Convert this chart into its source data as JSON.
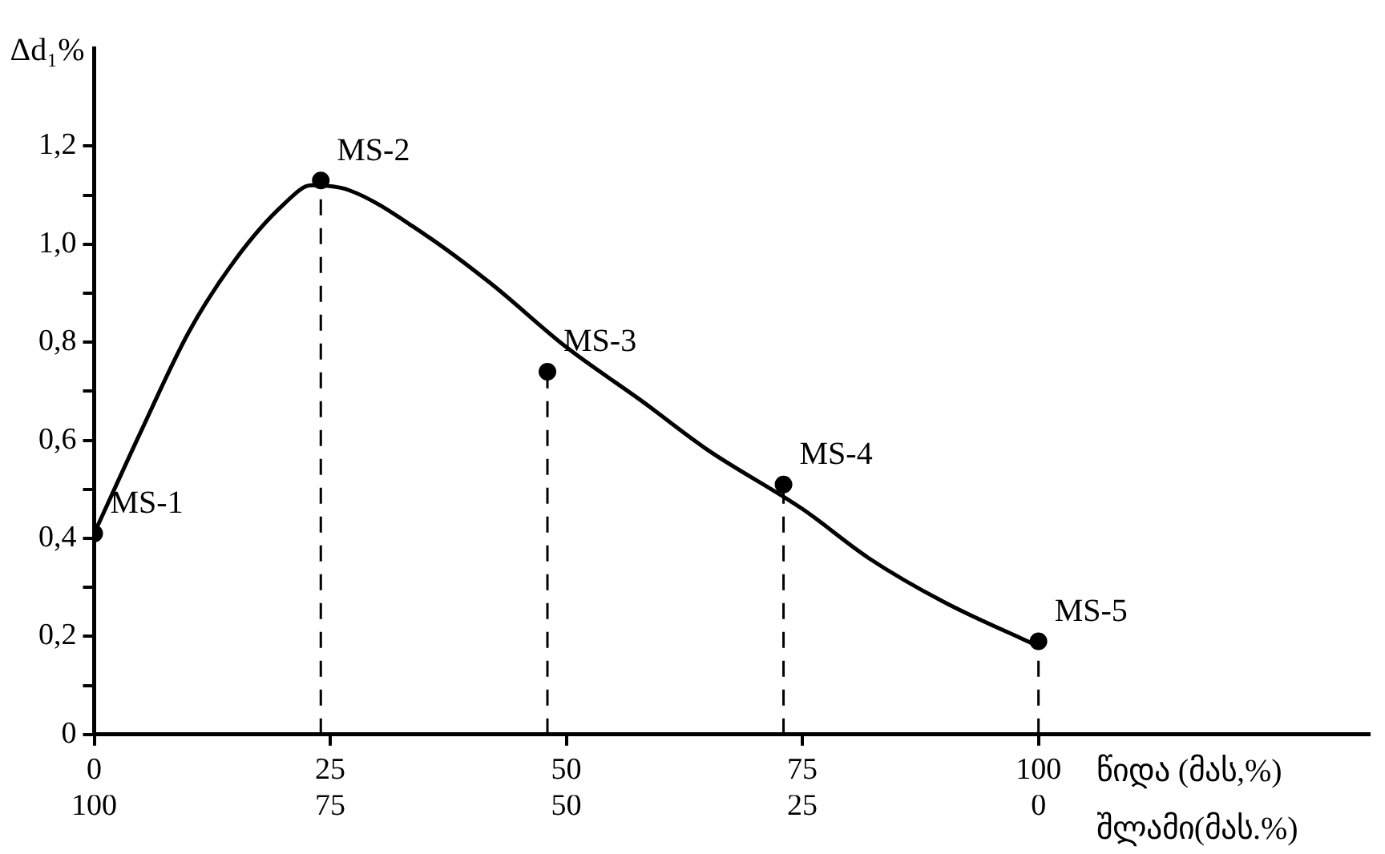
{
  "chart_data": {
    "type": "line",
    "xlabel": "წიდა (მას,%)",
    "x2label": "შლამი(მას.%)",
    "ylabel": "Δd₁%",
    "xlim": [
      0,
      135
    ],
    "xticks": [
      0,
      25,
      50,
      75,
      100
    ],
    "x2lim": [
      100,
      -35
    ],
    "x2ticks": [
      100,
      75,
      50,
      25,
      0
    ],
    "ylim": [
      0,
      1.4
    ],
    "yticks": [
      {
        "value": 0,
        "label": "0"
      },
      {
        "value": 0.1,
        "label": null
      },
      {
        "value": 0.2,
        "label": "0,2"
      },
      {
        "value": 0.3,
        "label": null
      },
      {
        "value": 0.4,
        "label": "0,4"
      },
      {
        "value": 0.5,
        "label": null
      },
      {
        "value": 0.6,
        "label": "0,6"
      },
      {
        "value": 0.7,
        "label": null
      },
      {
        "value": 0.8,
        "label": "0,8"
      },
      {
        "value": 0.9,
        "label": null
      },
      {
        "value": 1.0,
        "label": "1,0"
      },
      {
        "value": 1.1,
        "label": null
      },
      {
        "value": 1.2,
        "label": "1,2"
      }
    ],
    "grid": false,
    "legend": false,
    "marker": "circle",
    "series": [
      {
        "type": "line",
        "color": "#000000",
        "marker": "none",
        "x": [
          0,
          5,
          10,
          15,
          20,
          23,
          27,
          35,
          42,
          50,
          58,
          65,
          75,
          82,
          90,
          100
        ],
        "values": [
          0.41,
          0.62,
          0.82,
          0.97,
          1.08,
          1.12,
          1.11,
          1.02,
          0.92,
          0.79,
          0.68,
          0.58,
          0.46,
          0.36,
          0.27,
          0.18
        ]
      },
      {
        "type": "scatter",
        "color": "#000000",
        "x": [
          0,
          24,
          48,
          73,
          100
        ],
        "values": [
          0.41,
          1.13,
          0.74,
          0.51,
          0.19
        ]
      }
    ],
    "ref_lines": [
      {
        "axis": "x",
        "value": 24,
        "line_style": "dashed"
      },
      {
        "axis": "x",
        "value": 48,
        "line_style": "dashed"
      },
      {
        "axis": "x",
        "value": 73,
        "line_style": "dashed"
      },
      {
        "axis": "x",
        "value": 100,
        "line_style": "dashed"
      }
    ],
    "annotations": [
      {
        "text": "MS-1",
        "x": 0,
        "y": 0.41
      },
      {
        "text": "MS-2",
        "x": 24,
        "y": 1.13
      },
      {
        "text": "MS-3",
        "x": 48,
        "y": 0.74
      },
      {
        "text": "MS-4",
        "x": 73,
        "y": 0.51
      },
      {
        "text": "MS-5",
        "x": 100,
        "y": 0.19
      }
    ]
  }
}
